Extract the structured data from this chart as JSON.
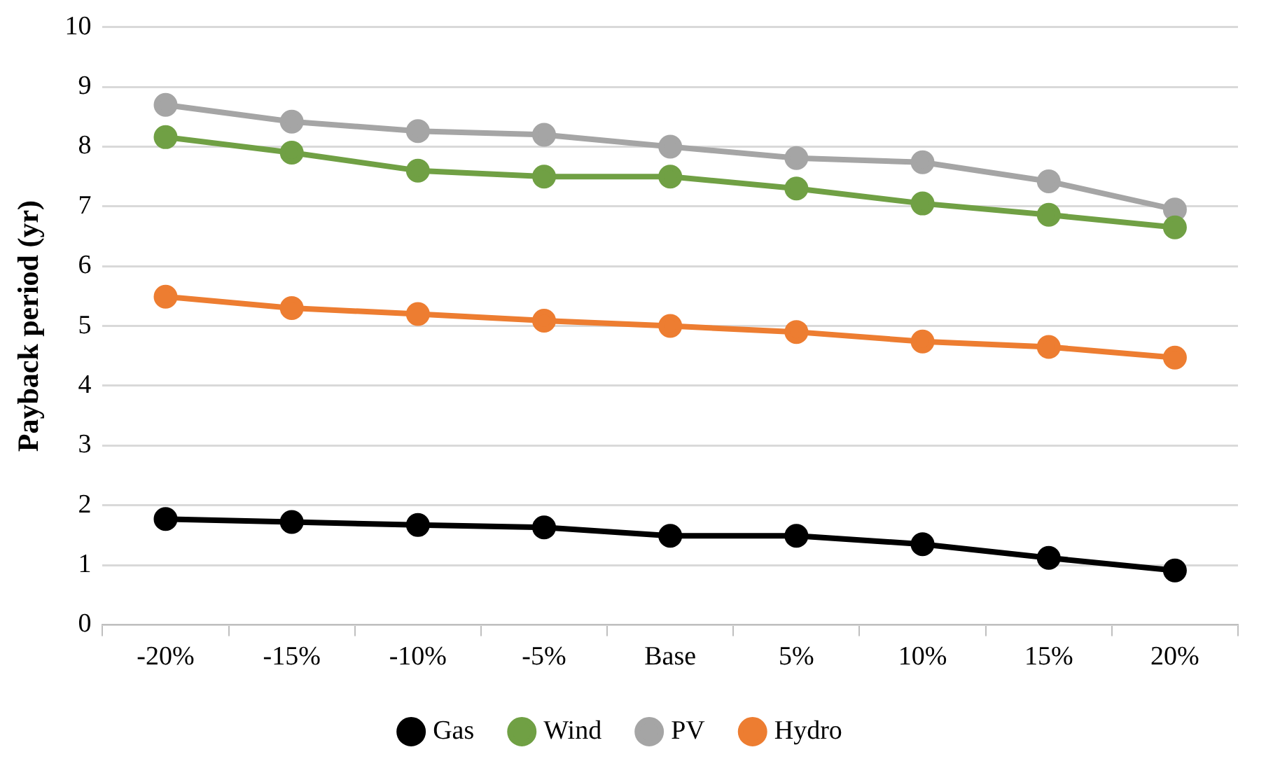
{
  "chart_data": {
    "type": "line",
    "ylabel": "Payback period (yr)",
    "categories": [
      "-20%",
      "-15%",
      "-10%",
      "-5%",
      "Base",
      "5%",
      "10%",
      "15%",
      "20%"
    ],
    "series": [
      {
        "name": "Gas",
        "color": "#000000",
        "values": [
          1.77,
          1.72,
          1.67,
          1.63,
          1.49,
          1.49,
          1.35,
          1.12,
          0.91
        ]
      },
      {
        "name": "Wind",
        "color": "#70a044",
        "values": [
          8.16,
          7.9,
          7.6,
          7.5,
          7.5,
          7.3,
          7.05,
          6.86,
          6.65
        ]
      },
      {
        "name": "PV",
        "color": "#a5a5a5",
        "values": [
          8.7,
          8.42,
          8.26,
          8.2,
          8.0,
          7.81,
          7.74,
          7.42,
          6.95
        ]
      },
      {
        "name": "Hydro",
        "color": "#ed7d31",
        "values": [
          5.49,
          5.3,
          5.2,
          5.09,
          5.0,
          4.9,
          4.74,
          4.65,
          4.47
        ]
      }
    ],
    "ylim": [
      0,
      10
    ],
    "yticks": [
      0,
      1,
      2,
      3,
      4,
      5,
      6,
      7,
      8,
      9,
      10
    ],
    "grid": "y",
    "legend": "bottom",
    "marker": "circle",
    "line_style": "solid"
  }
}
